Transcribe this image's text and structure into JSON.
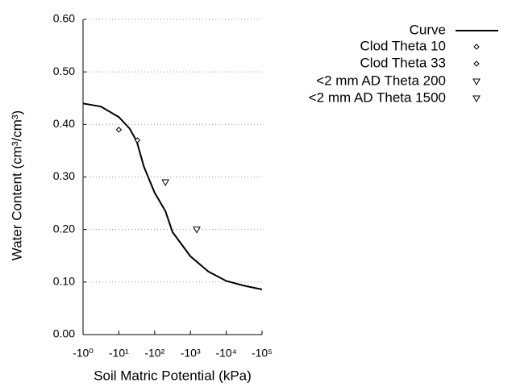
{
  "chart_data": {
    "type": "line",
    "xlabel": "Soil Matric Potential (kPa)",
    "ylabel": "Water Content (cm³/cm³)",
    "xscale": "log",
    "xlim": [
      -1,
      -100000
    ],
    "xticks": [
      {
        "value": -1,
        "label": "-10⁰"
      },
      {
        "value": -10,
        "label": "-10¹"
      },
      {
        "value": -100,
        "label": "-10²"
      },
      {
        "value": -1000,
        "label": "-10³"
      },
      {
        "value": -10000,
        "label": "-10⁴"
      },
      {
        "value": -100000,
        "label": "-10⁵"
      }
    ],
    "ylim": [
      0,
      0.6
    ],
    "yticks": [
      {
        "value": 0,
        "label": "0.00"
      },
      {
        "value": 0.1,
        "label": "0.10"
      },
      {
        "value": 0.2,
        "label": "0.20"
      },
      {
        "value": 0.3,
        "label": "0.30"
      },
      {
        "value": 0.4,
        "label": "0.40"
      },
      {
        "value": 0.5,
        "label": "0.50"
      },
      {
        "value": 0.6,
        "label": "0.60"
      }
    ],
    "grid": true,
    "legend": "top-right",
    "series": [
      {
        "name": "Curve",
        "color": "#000000",
        "marker": "line",
        "x": [
          -1,
          -3.16,
          -10,
          -20,
          -31.6,
          -50,
          -100,
          -200,
          -316,
          -1000,
          -3162,
          -10000,
          -31623,
          -100000
        ],
        "values": [
          0.44,
          0.434,
          0.414,
          0.392,
          0.368,
          0.32,
          0.27,
          0.235,
          0.195,
          0.149,
          0.12,
          0.102,
          0.093,
          0.086
        ]
      },
      {
        "name": "Clod Theta 10",
        "color": "#000000",
        "marker": "diamond",
        "x": [
          -10
        ],
        "values": [
          0.39
        ]
      },
      {
        "name": "Clod Theta 33",
        "color": "#000000",
        "marker": "diamond",
        "x": [
          -33
        ],
        "values": [
          0.37
        ]
      },
      {
        "name": "<2 mm AD Theta 200",
        "color": "#000000",
        "marker": "triangle-down",
        "x": [
          -200
        ],
        "values": [
          0.29
        ]
      },
      {
        "name": "<2 mm AD Theta 1500",
        "color": "#000000",
        "marker": "triangle-down",
        "x": [
          -1500
        ],
        "values": [
          0.2
        ]
      }
    ]
  }
}
